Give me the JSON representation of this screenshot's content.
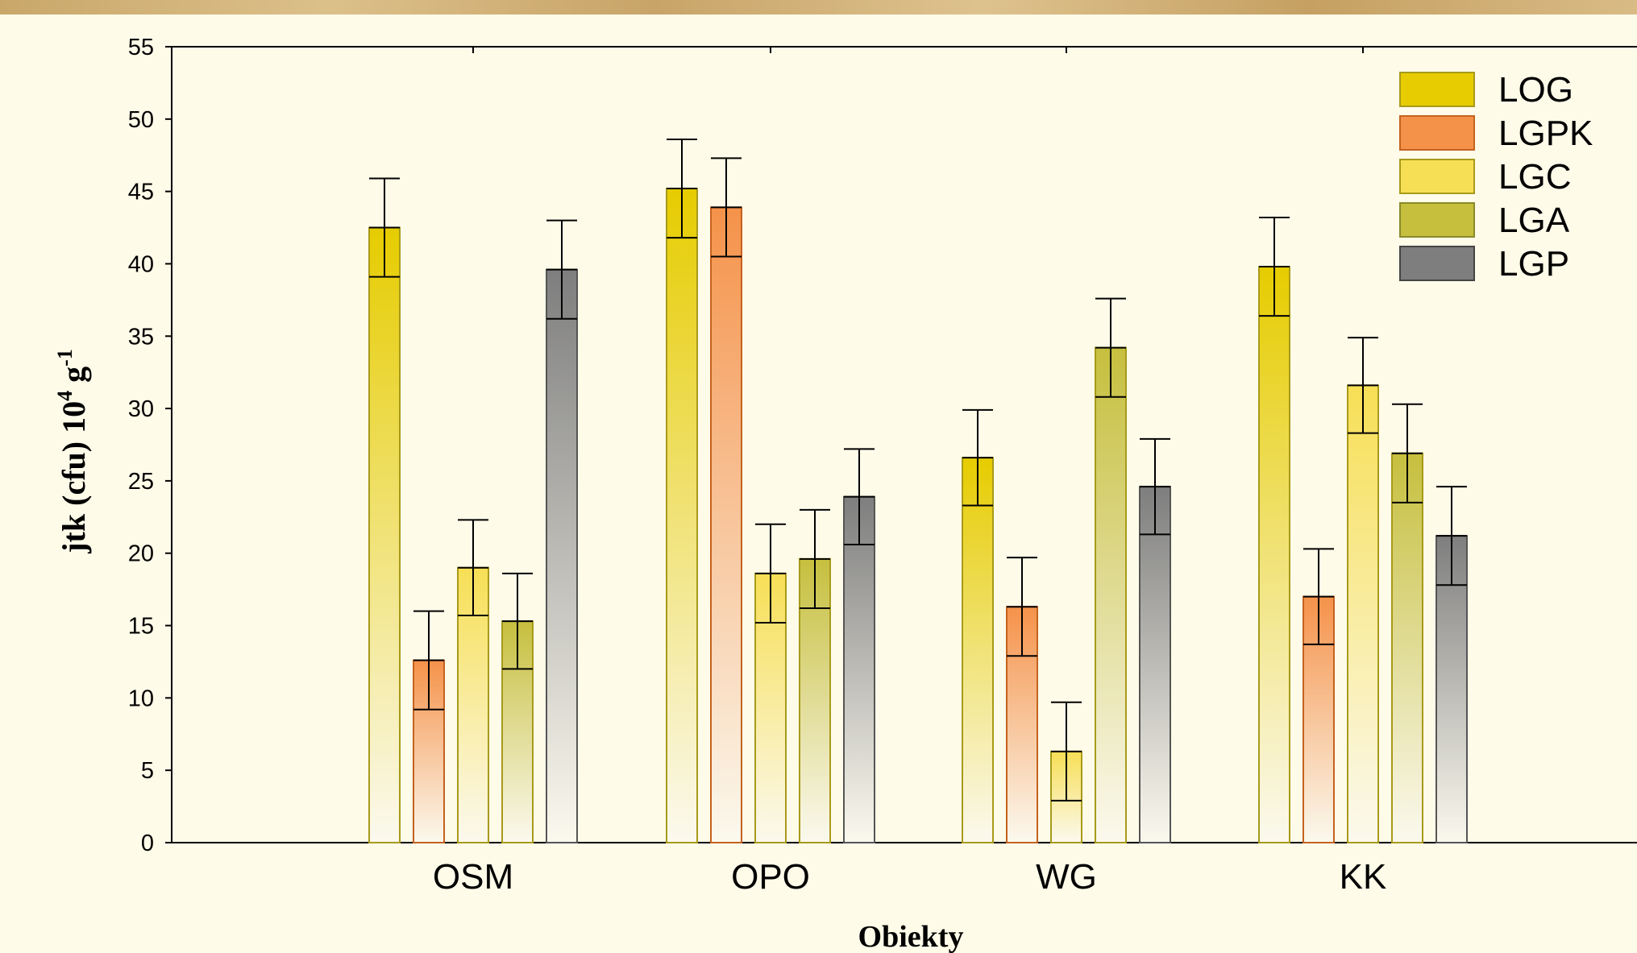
{
  "chart_data": {
    "type": "bar",
    "xlabel": "Obiekty",
    "ylabel": {
      "main": "jtk (cfu) 10",
      "sup1": "4",
      "mid": " g",
      "sup2": "-1"
    },
    "ylim": [
      0,
      55
    ],
    "yticks": [
      0,
      5,
      10,
      15,
      20,
      25,
      30,
      35,
      40,
      45,
      50,
      55
    ],
    "categories": [
      "OSM",
      "OPO",
      "WG",
      "KK"
    ],
    "error_bars": true,
    "legend_position": "top-right",
    "series": [
      {
        "name": "LOG",
        "color": "#e6cc00",
        "values": [
          42.5,
          45.2,
          26.6,
          39.8
        ],
        "errors": [
          3.4,
          3.4,
          3.3,
          3.4
        ]
      },
      {
        "name": "LGPK",
        "color": "#f5924a",
        "values": [
          12.6,
          43.9,
          16.3,
          17.0
        ],
        "errors": [
          3.4,
          3.4,
          3.4,
          3.3
        ]
      },
      {
        "name": "LGC",
        "color": "#f7df55",
        "values": [
          19.0,
          18.6,
          6.3,
          31.6
        ],
        "errors": [
          3.3,
          3.4,
          3.4,
          3.3
        ]
      },
      {
        "name": "LGA",
        "color": "#c6bf3e",
        "values": [
          15.3,
          19.6,
          34.2,
          26.9
        ],
        "errors": [
          3.3,
          3.4,
          3.4,
          3.4
        ]
      },
      {
        "name": "LGP",
        "color": "#7e7e7e",
        "values": [
          39.6,
          23.9,
          24.6,
          21.2
        ],
        "errors": [
          3.4,
          3.3,
          3.3,
          3.4
        ]
      }
    ]
  }
}
